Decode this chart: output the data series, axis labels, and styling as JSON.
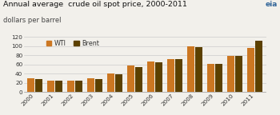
{
  "title": "Annual average  crude oil spot price, 2000-2011",
  "subtitle": "dollars per barrel",
  "years": [
    2000,
    2001,
    2002,
    2003,
    2004,
    2005,
    2006,
    2007,
    2008,
    2009,
    2010,
    2011
  ],
  "wti": [
    30,
    25,
    25,
    30,
    41,
    57,
    66,
    72,
    100,
    61,
    79,
    95
  ],
  "brent": [
    28,
    24,
    25,
    28,
    38,
    54,
    65,
    72,
    97,
    61,
    79,
    111
  ],
  "wti_color": "#CC7722",
  "brent_color": "#5C4000",
  "ylim": [
    0,
    120
  ],
  "yticks": [
    0,
    20,
    40,
    60,
    80,
    100,
    120
  ],
  "legend_wti": "WTI",
  "legend_brent": "Brent",
  "bg_color": "#F2F0EB",
  "title_fontsize": 6.8,
  "subtitle_fontsize": 6.0,
  "tick_fontsize": 5.2,
  "legend_fontsize": 5.8
}
